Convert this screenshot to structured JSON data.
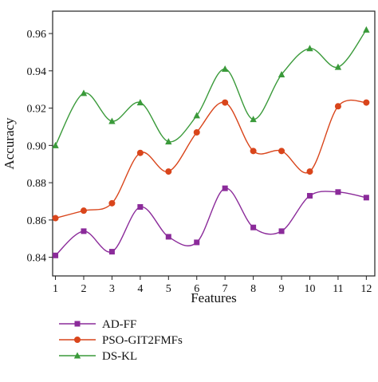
{
  "chart_data": {
    "type": "line",
    "xlabel": "Features",
    "ylabel": "Accuracy",
    "x": [
      1,
      2,
      3,
      4,
      5,
      6,
      7,
      8,
      9,
      10,
      11,
      12
    ],
    "xlim": [
      0.9,
      12.3
    ],
    "ylim": [
      0.83,
      0.972
    ],
    "yticks": [
      0.84,
      0.86,
      0.88,
      0.9,
      0.92,
      0.94,
      0.96
    ],
    "ytick_labels": [
      "0.84",
      "0.86",
      "0.88",
      "0.90",
      "0.92",
      "0.94",
      "0.96"
    ],
    "xtick_labels": [
      "1",
      "2",
      "3",
      "4",
      "5",
      "6",
      "7",
      "8",
      "9",
      "10",
      "11",
      "12"
    ],
    "grid": false,
    "legend_position": "below",
    "series": [
      {
        "name": "AD-FF",
        "color": "#8b2b9a",
        "marker": "square",
        "values": [
          0.841,
          0.854,
          0.843,
          0.867,
          0.851,
          0.848,
          0.877,
          0.856,
          0.854,
          0.873,
          0.875,
          0.872
        ]
      },
      {
        "name": "PSO-GIT2FMFs",
        "color": "#d9451b",
        "marker": "circle",
        "values": [
          0.861,
          0.865,
          0.869,
          0.896,
          0.886,
          0.907,
          0.923,
          0.897,
          0.897,
          0.886,
          0.921,
          0.923
        ]
      },
      {
        "name": "DS-KL",
        "color": "#3a9a3a",
        "marker": "triangle",
        "values": [
          0.9,
          0.928,
          0.913,
          0.923,
          0.902,
          0.916,
          0.941,
          0.914,
          0.938,
          0.952,
          0.942,
          0.962
        ]
      }
    ]
  }
}
